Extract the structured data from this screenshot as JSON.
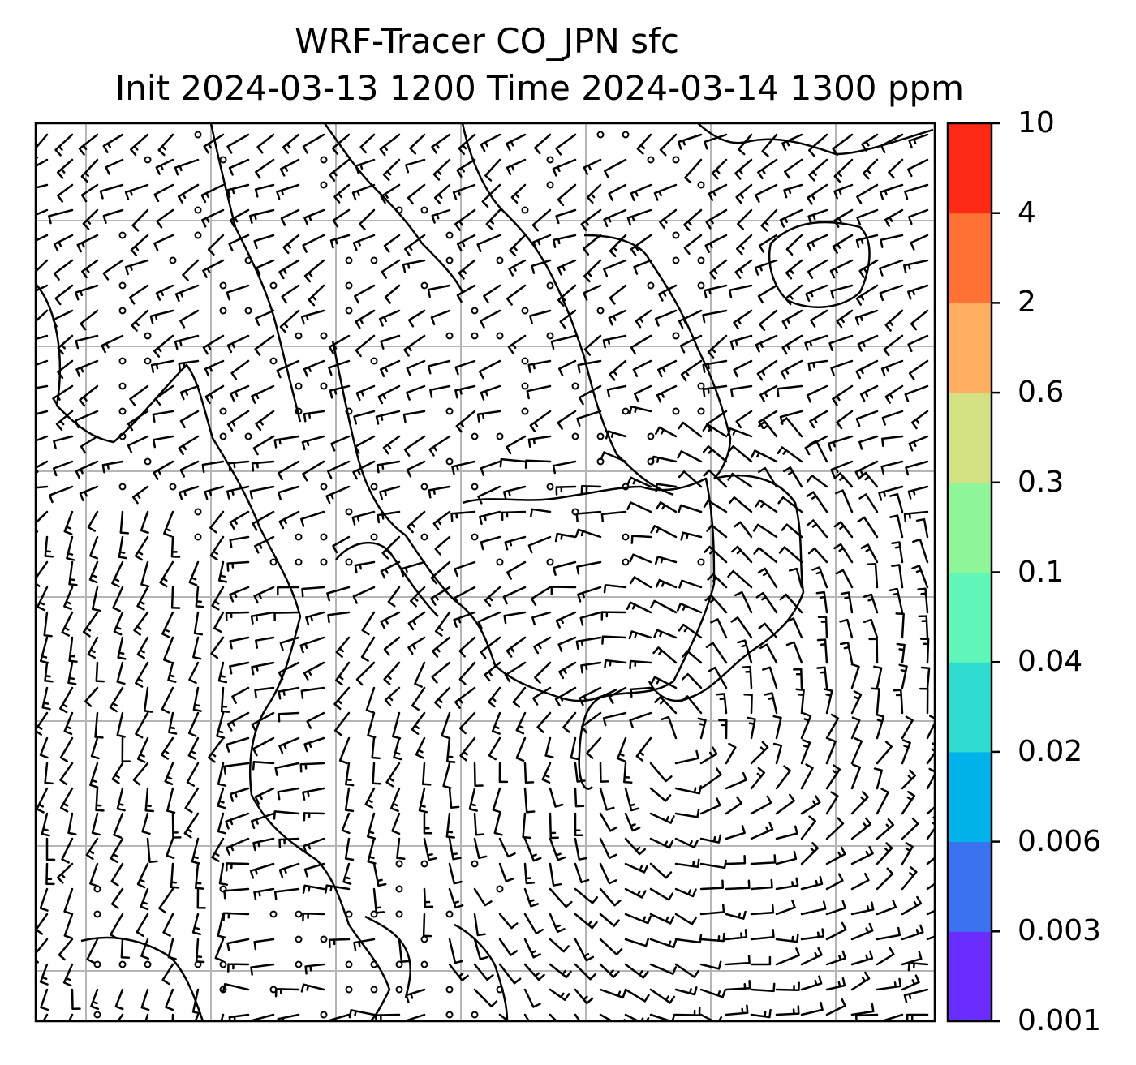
{
  "title": {
    "line1": "WRF-Tracer CO_JPN sfc",
    "line2": "Init 2024-03-13 1200 Time 2024-03-14 1300 ppm"
  },
  "colorbar": {
    "levels": [
      {
        "label": "0.001",
        "color": "#6a2cff"
      },
      {
        "label": "0.003",
        "color": "#3b72f0"
      },
      {
        "label": "0.006",
        "color": "#00b2ea"
      },
      {
        "label": "0.02",
        "color": "#2fdcd2"
      },
      {
        "label": "0.04",
        "color": "#5ff6b8"
      },
      {
        "label": "0.1",
        "color": "#8ef599"
      },
      {
        "label": "0.3",
        "color": "#d3e183"
      },
      {
        "label": "0.6",
        "color": "#ffae62"
      },
      {
        "label": "2",
        "color": "#ff7233"
      },
      {
        "label": "4",
        "color": "#ff2a16"
      },
      {
        "label": "10",
        "color": null
      }
    ]
  },
  "map": {
    "gridlines": true,
    "wind_barbs": true,
    "coastlines": true
  }
}
